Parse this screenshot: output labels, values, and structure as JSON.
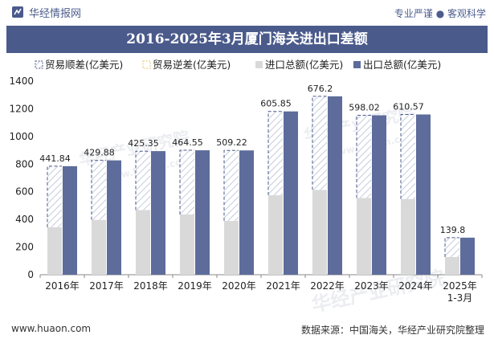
{
  "header": {
    "brand": "华经情报网",
    "slogan": "专业严谨 ● 客观科学"
  },
  "chart_data": {
    "type": "bar",
    "title": "2016-2025年3月厦门海关进出口差额",
    "categories": [
      "2016年",
      "2017年",
      "2018年",
      "2019年",
      "2020年",
      "2021年",
      "2022年",
      "2023年",
      "2024年",
      "2025年\n1-3月"
    ],
    "series": [
      {
        "name": "贸易顺差(亿美元)",
        "values": [
          441.84,
          429.88,
          425.35,
          464.55,
          509.22,
          605.85,
          676.2,
          598.02,
          610.57,
          139.8
        ]
      },
      {
        "name": "贸易逆差(亿美元)",
        "values": [
          0,
          0,
          0,
          0,
          0,
          0,
          0,
          0,
          0,
          0
        ]
      },
      {
        "name": "进口总额(亿美元)",
        "values": [
          343,
          397,
          468,
          436,
          390,
          575,
          614,
          555,
          548,
          128
        ]
      },
      {
        "name": "出口总额(亿美元)",
        "values": [
          785,
          827,
          894,
          900,
          899,
          1181,
          1290,
          1153,
          1159,
          268
        ]
      }
    ],
    "data_labels": [
      "441.84",
      "429.88",
      "425.35",
      "464.55",
      "509.22",
      "605.85",
      "676.2",
      "598.02",
      "610.57",
      "139.8"
    ],
    "ylim": [
      0,
      1400
    ],
    "yticks": [
      0,
      200,
      400,
      600,
      800,
      1000,
      1200,
      1400
    ],
    "xlabel": "",
    "ylabel": "",
    "legend_position": "top-left",
    "colors": {
      "surplus": "#4a5a8b",
      "deficit": "#e6cf8a",
      "import": "#d9d9d9",
      "export": "#5d6c9b"
    }
  },
  "watermarks": [
    "华经产业研究院",
    "www.huaon.com"
  ],
  "footer": {
    "website": "www.huaon.com",
    "source": "数据来源：中国海关，华经产业研究院整理"
  }
}
